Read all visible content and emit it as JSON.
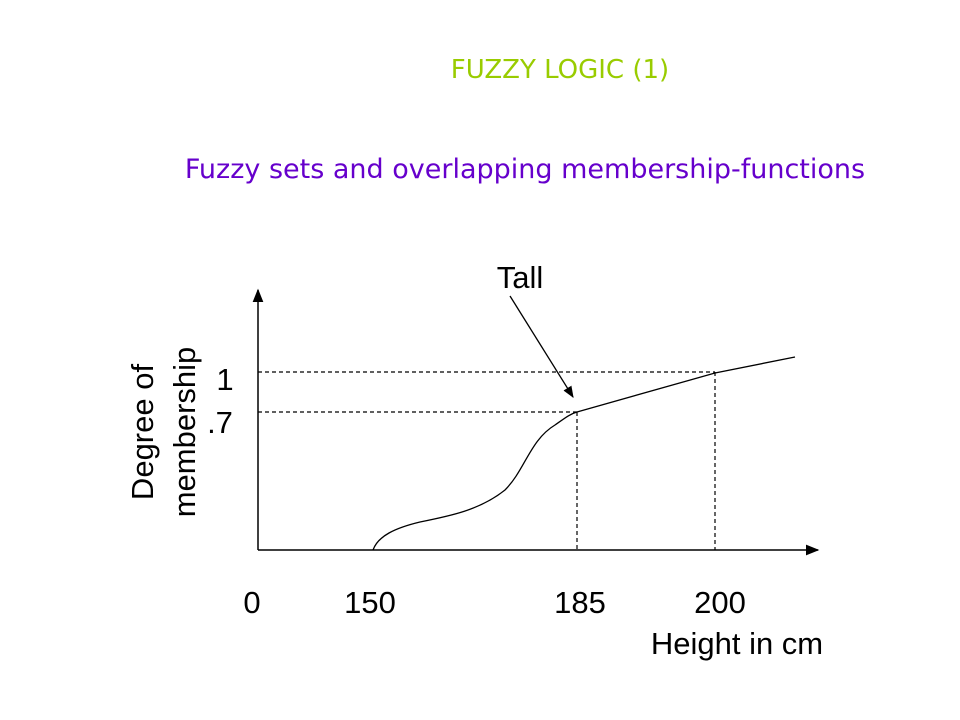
{
  "title": "FUZZY LOGIC (1)",
  "subtitle": "Fuzzy sets and overlapping membership-functions",
  "diagram": {
    "y_label_lines": [
      "Degree of",
      "membership"
    ],
    "y_ticks": [
      "1",
      ".7"
    ],
    "x_ticks": [
      "0",
      "150",
      "185",
      "200"
    ],
    "x_label": "Height in cm",
    "curve_label": "Tall"
  }
}
